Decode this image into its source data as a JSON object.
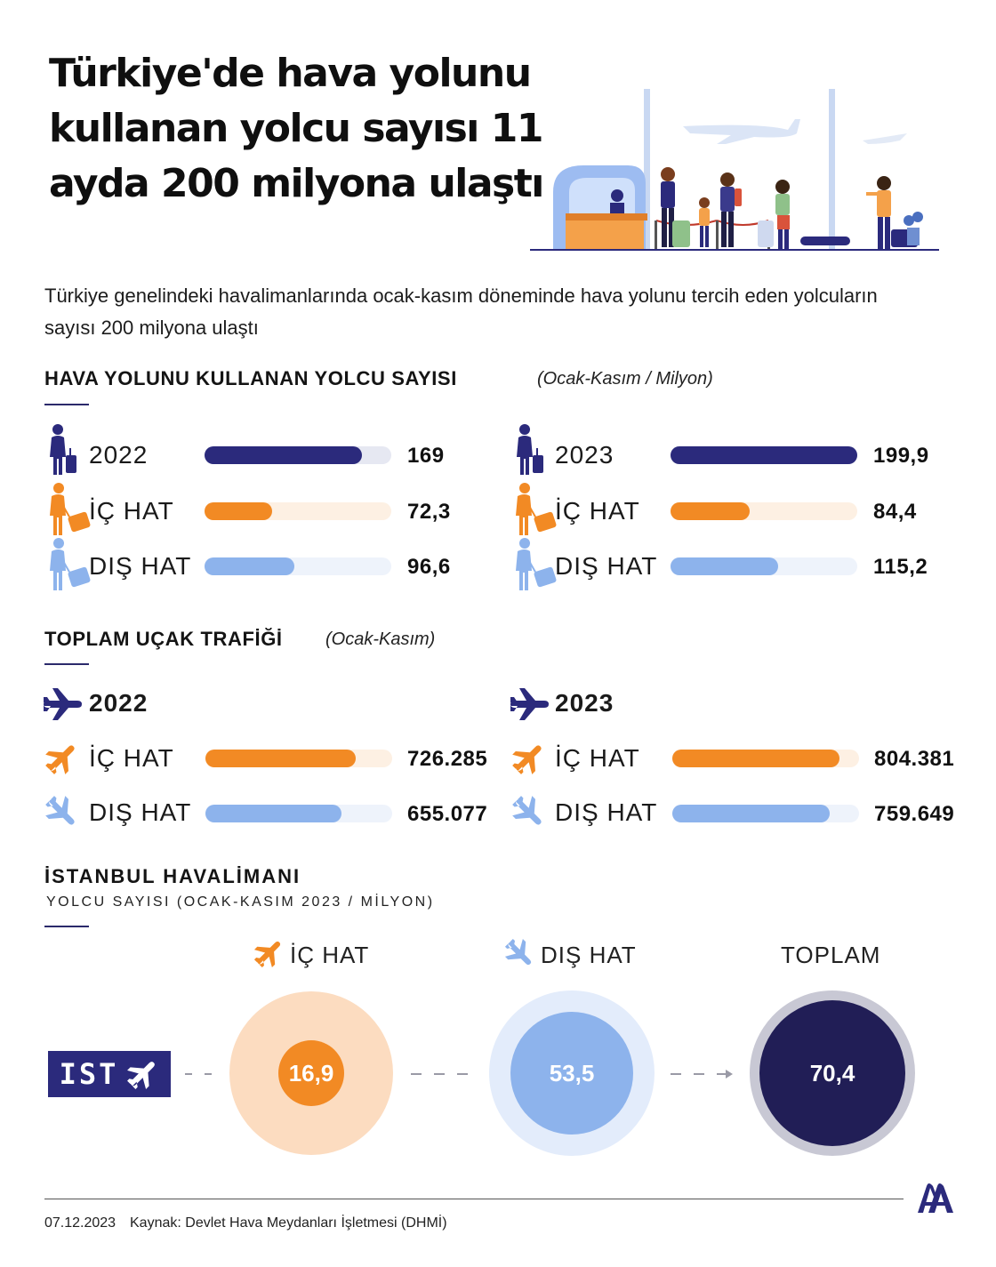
{
  "title": "Türkiye'de hava yolunu kullanan yolcu sayısı 11 ayda 200 milyona ulaştı",
  "subtitle": "Türkiye genelindeki havalimanlarında ocak-kasım döneminde hava yolunu tercih eden yolcuların sayısı 200 milyona ulaştı",
  "colors": {
    "navy": "#2b2a7c",
    "orange": "#f28a24",
    "light_blue": "#8db3ec",
    "dark_navy": "#211e56"
  },
  "passengers": {
    "title": "HAVA YOLUNU KULLANAN YOLCU SAYISI",
    "note": "(Ocak-Kasım / Milyon)"
  },
  "traffic": {
    "title": "TOPLAM UÇAK TRAFİĞİ",
    "note": "(Ocak-Kasım)"
  },
  "istanbul": {
    "title": "İSTANBUL HAVALİMANI",
    "subtitle": "YOLCU SAYISI (OCAK-KASIM 2023 / MİLYON)",
    "code": "IST",
    "ic_label": "İÇ HAT",
    "dis_label": "DIŞ HAT",
    "total_label": "TOPLAM"
  },
  "footer": {
    "date": "07.12.2023",
    "source": "Kaynak: Devlet Hava Meydanları İşletmesi (DHMİ)"
  },
  "chart_data": [
    {
      "type": "bar",
      "title": "HAVA YOLUNU KULLANAN YOLCU SAYISI",
      "subtitle": "(Ocak-Kasım / Milyon)",
      "unit": "Milyon",
      "categories": [
        "",
        "İÇ HAT",
        "DIŞ HAT"
      ],
      "series": [
        {
          "name": "2022",
          "values": [
            169,
            72.3,
            96.6
          ],
          "labels": [
            "169",
            "72,3",
            "96,6"
          ]
        },
        {
          "name": "2023",
          "values": [
            199.9,
            84.4,
            115.2
          ],
          "labels": [
            "199,9",
            "84,4",
            "115,2"
          ]
        }
      ]
    },
    {
      "type": "bar",
      "title": "TOPLAM UÇAK TRAFİĞİ",
      "subtitle": "(Ocak-Kasım)",
      "categories": [
        "İÇ HAT",
        "DIŞ HAT"
      ],
      "series": [
        {
          "name": "2022",
          "values": [
            726285,
            655077
          ],
          "labels": [
            "726.285",
            "655.077"
          ]
        },
        {
          "name": "2023",
          "values": [
            804381,
            759649
          ],
          "labels": [
            "804.381",
            "759.649"
          ]
        }
      ]
    },
    {
      "type": "bubble",
      "title": "İSTANBUL HAVALİMANI",
      "subtitle": "YOLCU SAYISI (OCAK-KASIM 2023 / MİLYON)",
      "categories": [
        "İÇ HAT",
        "DIŞ HAT",
        "TOPLAM"
      ],
      "values": [
        16.9,
        53.5,
        70.4
      ],
      "labels": [
        "16,9",
        "53,5",
        "70,4"
      ]
    }
  ]
}
